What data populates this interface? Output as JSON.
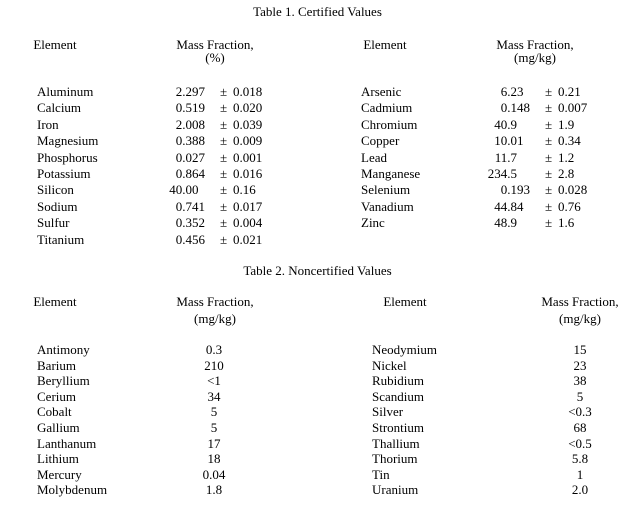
{
  "table1": {
    "title": "Table 1. Certified Values",
    "left_header": {
      "element": "Element",
      "mass_fraction": "Mass Fraction,",
      "unit": "(%)"
    },
    "right_header": {
      "element": "Element",
      "mass_fraction": "Mass Fraction,",
      "unit": "(mg/kg)"
    },
    "pm": "±",
    "left_rows": [
      {
        "element": "Aluminum",
        "value": "2.297",
        "uncertainty": "0.018"
      },
      {
        "element": "Calcium",
        "value": "0.519",
        "uncertainty": "0.020"
      },
      {
        "element": "Iron",
        "value": "2.008",
        "uncertainty": "0.039"
      },
      {
        "element": "Magnesium",
        "value": "0.388",
        "uncertainty": "0.009"
      },
      {
        "element": "Phosphorus",
        "value": "0.027",
        "uncertainty": "0.001"
      },
      {
        "element": "Potassium",
        "value": "0.864",
        "uncertainty": "0.016"
      },
      {
        "element": "Silicon",
        "value": "40.00",
        "uncertainty": "0.16"
      },
      {
        "element": "Sodium",
        "value": "0.741",
        "uncertainty": "0.017"
      },
      {
        "element": "Sulfur",
        "value": "0.352",
        "uncertainty": "0.004"
      },
      {
        "element": "Titanium",
        "value": "0.456",
        "uncertainty": "0.021"
      }
    ],
    "right_rows": [
      {
        "element": "Arsenic",
        "value": "6.23",
        "uncertainty": "0.21"
      },
      {
        "element": "Cadmium",
        "value": "0.148",
        "uncertainty": "0.007"
      },
      {
        "element": "Chromium",
        "value": "40.9",
        "uncertainty": "1.9"
      },
      {
        "element": "Copper",
        "value": "10.01",
        "uncertainty": "0.34"
      },
      {
        "element": "Lead",
        "value": "11.7",
        "uncertainty": "1.2"
      },
      {
        "element": "Manganese",
        "value": "234.5",
        "uncertainty": "2.8"
      },
      {
        "element": "Selenium",
        "value": "0.193",
        "uncertainty": "0.028"
      },
      {
        "element": "Vanadium",
        "value": "44.84",
        "uncertainty": "0.76"
      },
      {
        "element": "Zinc",
        "value": "48.9",
        "uncertainty": "1.6"
      }
    ]
  },
  "table2": {
    "title": "Table 2. Noncertified Values",
    "left_header": {
      "element": "Element",
      "mass_fraction": "Mass Fraction,",
      "unit": "(mg/kg)"
    },
    "right_header": {
      "element": "Element",
      "mass_fraction": "Mass Fraction,",
      "unit": "(mg/kg)"
    },
    "left_rows": [
      {
        "element": "Antimony",
        "value": "0.3"
      },
      {
        "element": "Barium",
        "value": "210"
      },
      {
        "element": "Beryllium",
        "value": "<1"
      },
      {
        "element": "Cerium",
        "value": "34"
      },
      {
        "element": "Cobalt",
        "value": "5"
      },
      {
        "element": "Gallium",
        "value": "5"
      },
      {
        "element": "Lanthanum",
        "value": "17"
      },
      {
        "element": "Lithium",
        "value": "18"
      },
      {
        "element": "Mercury",
        "value": "0.04"
      },
      {
        "element": "Molybdenum",
        "value": "1.8"
      }
    ],
    "right_rows": [
      {
        "element": "Neodymium",
        "value": "15"
      },
      {
        "element": "Nickel",
        "value": "23"
      },
      {
        "element": "Rubidium",
        "value": "38"
      },
      {
        "element": "Scandium",
        "value": "5"
      },
      {
        "element": "Silver",
        "value": "<0.3"
      },
      {
        "element": "Strontium",
        "value": "68"
      },
      {
        "element": "Thallium",
        "value": "<0.5"
      },
      {
        "element": "Thorium",
        "value": "5.8"
      },
      {
        "element": "Tin",
        "value": "1"
      },
      {
        "element": "Uranium",
        "value": "2.0"
      }
    ]
  }
}
